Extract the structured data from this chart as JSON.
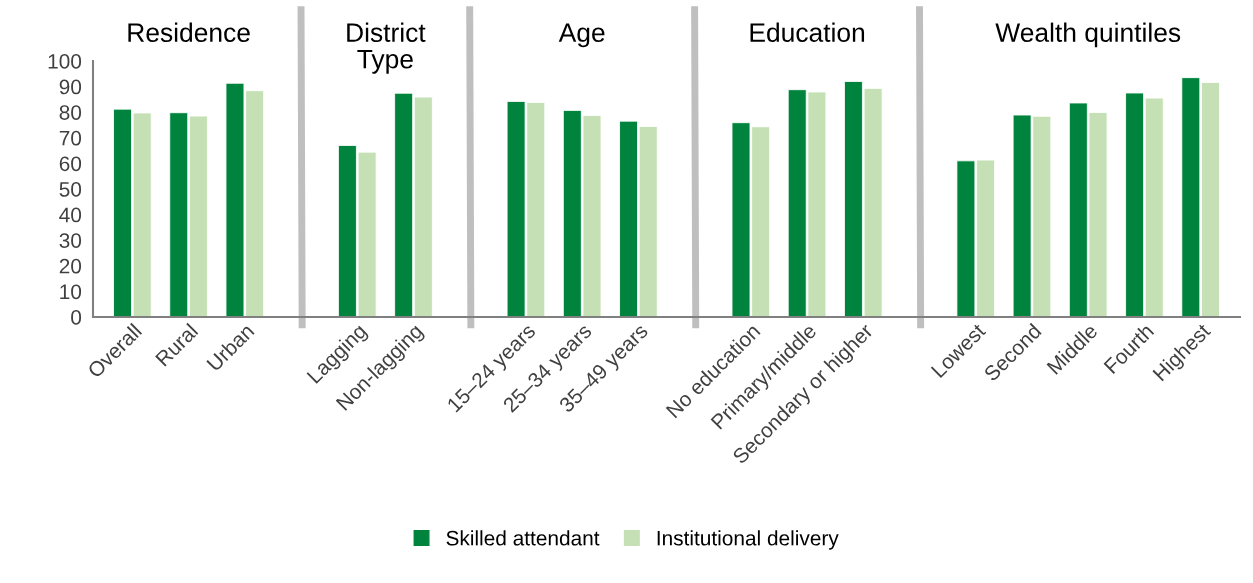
{
  "chart_data": {
    "type": "bar",
    "categories": [
      "Overall",
      "Rural",
      "Urban",
      null,
      "Lagging",
      "Non-lagging",
      null,
      "15–24 years",
      "25–34 years",
      "35–49 years",
      null,
      "No education",
      "Primary/middle",
      "Secondary or higher",
      null,
      "Lowest",
      "Second",
      "Middle",
      "Fourth",
      "Highest"
    ],
    "series": [
      {
        "name": "Skilled attendant",
        "color": "#00843d",
        "values": [
          81.2,
          79.8,
          91.3,
          null,
          67.0,
          87.4,
          null,
          84.2,
          80.7,
          76.5,
          null,
          75.9,
          88.8,
          92.0,
          null,
          61.0,
          78.9,
          83.6,
          87.5,
          93.5
        ]
      },
      {
        "name": "Institutional delivery",
        "color": "#c5e0b4",
        "values": [
          79.7,
          78.5,
          88.4,
          null,
          64.4,
          85.9,
          null,
          83.8,
          78.7,
          74.4,
          null,
          74.3,
          87.9,
          89.3,
          null,
          61.3,
          78.4,
          79.9,
          85.5,
          91.6
        ]
      }
    ],
    "annotations": [
      "Residence",
      "District\nType",
      "Age",
      "Education",
      "Wealth quintiles"
    ],
    "ylim": [
      0,
      100
    ],
    "yticks": [
      0,
      10,
      20,
      30,
      40,
      50,
      60,
      70,
      80,
      90,
      100
    ],
    "grid": false,
    "legend": "bottom"
  }
}
